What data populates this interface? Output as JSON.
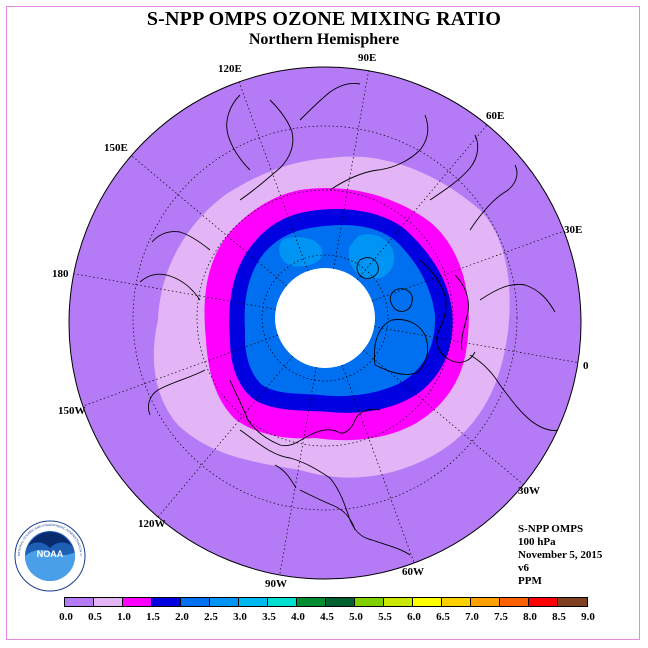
{
  "title": "S-NPP OMPS OZONE MIXING RATIO",
  "subtitle": "Northern Hemisphere",
  "longitude_labels": [
    "90E",
    "60E",
    "30E",
    "0",
    "30W",
    "60W",
    "90W",
    "120W",
    "150W",
    "180",
    "150E",
    "120E"
  ],
  "info": {
    "instrument": "S-NPP OMPS",
    "level": "100 hPa",
    "date": "November 5, 2015",
    "version": "v6",
    "units": "PPM"
  },
  "logo": {
    "name": "NOAA",
    "text": "NATIONAL OCEANIC AND ATMOSPHERIC ADMINISTRATION U.S. DEPARTMENT OF COMMERCE"
  },
  "legend": {
    "ticks": [
      "0.0",
      "0.5",
      "1.0",
      "1.5",
      "2.0",
      "2.5",
      "3.0",
      "3.5",
      "4.0",
      "4.5",
      "5.0",
      "5.5",
      "6.0",
      "6.5",
      "7.0",
      "7.5",
      "8.0",
      "8.5",
      "9.0"
    ],
    "colors": [
      "#b57bf7",
      "#e3b5f6",
      "#ff00ff",
      "#0000e0",
      "#0070f0",
      "#0095f5",
      "#00b8f0",
      "#00e0d0",
      "#008c30",
      "#006030",
      "#80d000",
      "#c8e800",
      "#ffff00",
      "#ffd000",
      "#ffa000",
      "#ff6000",
      "#ff0000",
      "#804020"
    ]
  },
  "colors": {
    "band_0_0_5": "#b57bf7",
    "band_0_5_1_0": "#e3b5f6",
    "band_1_0_1_5": "#ff00ff",
    "band_1_5_2_0": "#0000e0",
    "band_2_0_2_5": "#0070f0",
    "band_2_5_3_0": "#0095f5"
  }
}
